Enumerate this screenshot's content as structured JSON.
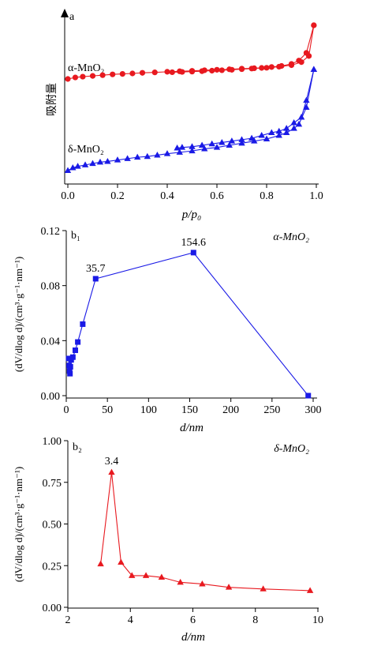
{
  "chart_data": [
    {
      "panel_label": "a",
      "type": "line",
      "xlabel": "p/p₀",
      "ylabel": "吸附量",
      "xlim": [
        0,
        1.0
      ],
      "xticks": [
        "0.0",
        "0.2",
        "0.4",
        "0.6",
        "0.8",
        "1.0"
      ],
      "series": [
        {
          "name": "α-MnO₂",
          "color": "#e8191f",
          "marker": "circle",
          "adsorption": [
            [
              0.0,
              0.55
            ],
            [
              0.03,
              0.56
            ],
            [
              0.06,
              0.565
            ],
            [
              0.1,
              0.57
            ],
            [
              0.14,
              0.575
            ],
            [
              0.18,
              0.58
            ],
            [
              0.22,
              0.583
            ],
            [
              0.26,
              0.586
            ],
            [
              0.3,
              0.59
            ],
            [
              0.35,
              0.593
            ],
            [
              0.4,
              0.597
            ],
            [
              0.45,
              0.6
            ],
            [
              0.5,
              0.603
            ],
            [
              0.55,
              0.607
            ],
            [
              0.6,
              0.61
            ],
            [
              0.65,
              0.613
            ],
            [
              0.7,
              0.617
            ],
            [
              0.75,
              0.62
            ],
            [
              0.8,
              0.623
            ],
            [
              0.85,
              0.63
            ],
            [
              0.9,
              0.64
            ],
            [
              0.94,
              0.66
            ],
            [
              0.97,
              0.7
            ],
            [
              0.99,
              0.9
            ]
          ],
          "desorption": [
            [
              0.99,
              0.9
            ],
            [
              0.96,
              0.72
            ],
            [
              0.93,
              0.67
            ],
            [
              0.9,
              0.648
            ],
            [
              0.86,
              0.635
            ],
            [
              0.82,
              0.628
            ],
            [
              0.78,
              0.622
            ],
            [
              0.74,
              0.618
            ],
            [
              0.7,
              0.614
            ],
            [
              0.66,
              0.61
            ],
            [
              0.62,
              0.607
            ],
            [
              0.58,
              0.604
            ],
            [
              0.54,
              0.601
            ],
            [
              0.5,
              0.598
            ],
            [
              0.46,
              0.596
            ],
            [
              0.42,
              0.594
            ]
          ]
        },
        {
          "name": "δ-MnO₂",
          "color": "#1a1ae6",
          "marker": "triangle",
          "adsorption": [
            [
              0.0,
              0.0
            ],
            [
              0.02,
              0.02
            ],
            [
              0.04,
              0.03
            ],
            [
              0.07,
              0.04
            ],
            [
              0.1,
              0.05
            ],
            [
              0.13,
              0.06
            ],
            [
              0.16,
              0.065
            ],
            [
              0.2,
              0.075
            ],
            [
              0.24,
              0.085
            ],
            [
              0.28,
              0.095
            ],
            [
              0.32,
              0.1
            ],
            [
              0.36,
              0.11
            ],
            [
              0.4,
              0.12
            ],
            [
              0.45,
              0.13
            ],
            [
              0.5,
              0.14
            ],
            [
              0.55,
              0.155
            ],
            [
              0.6,
              0.165
            ],
            [
              0.65,
              0.18
            ],
            [
              0.7,
              0.195
            ],
            [
              0.75,
              0.21
            ],
            [
              0.8,
              0.225
            ],
            [
              0.85,
              0.25
            ],
            [
              0.88,
              0.27
            ],
            [
              0.91,
              0.3
            ],
            [
              0.93,
              0.33
            ],
            [
              0.96,
              0.45
            ],
            [
              0.99,
              0.72
            ]
          ],
          "desorption": [
            [
              0.99,
              0.72
            ],
            [
              0.96,
              0.5
            ],
            [
              0.94,
              0.38
            ],
            [
              0.91,
              0.34
            ],
            [
              0.88,
              0.3
            ],
            [
              0.85,
              0.28
            ],
            [
              0.82,
              0.27
            ],
            [
              0.78,
              0.25
            ],
            [
              0.74,
              0.23
            ],
            [
              0.7,
              0.22
            ],
            [
              0.66,
              0.21
            ],
            [
              0.62,
              0.2
            ],
            [
              0.58,
              0.19
            ],
            [
              0.54,
              0.18
            ],
            [
              0.5,
              0.17
            ],
            [
              0.46,
              0.165
            ],
            [
              0.44,
              0.16
            ]
          ]
        }
      ]
    },
    {
      "panel_label": "b₁",
      "type": "line",
      "xlabel": "d/nm",
      "ylabel": "(dV/dlog d)/(cm³·g⁻¹·nm⁻¹)",
      "xlim": [
        0,
        300
      ],
      "ylim": [
        0,
        0.12
      ],
      "xticks": [
        "0",
        "50",
        "100",
        "150",
        "200",
        "250",
        "300"
      ],
      "yticks": [
        "0.00",
        "0.04",
        "0.08",
        "0.12"
      ],
      "legend": "α-MnO₂",
      "series": [
        {
          "name": "α-MnO₂",
          "color": "#1a1ae6",
          "marker": "square",
          "x": [
            3,
            3.5,
            4,
            4.5,
            5,
            6,
            8,
            11,
            14,
            20,
            35.7,
            154.6,
            294
          ],
          "y": [
            0.027,
            0.022,
            0.018,
            0.016,
            0.021,
            0.026,
            0.028,
            0.033,
            0.039,
            0.052,
            0.085,
            0.104,
            0.0
          ],
          "labels": [
            {
              "x": 35.7,
              "y": 0.085,
              "text": "35.7"
            },
            {
              "x": 154.6,
              "y": 0.104,
              "text": "154.6"
            }
          ]
        }
      ]
    },
    {
      "panel_label": "b₂",
      "type": "line",
      "xlabel": "d/nm",
      "ylabel": "(dV/dlog d)/(cm³·g⁻¹·nm⁻¹)",
      "xlim": [
        2,
        10
      ],
      "ylim": [
        0,
        1.0
      ],
      "xticks": [
        "2",
        "4",
        "6",
        "8",
        "10"
      ],
      "yticks": [
        "0.00",
        "0.25",
        "0.50",
        "0.75",
        "1.00"
      ],
      "legend": "δ-MnO₂",
      "series": [
        {
          "name": "δ-MnO₂",
          "color": "#e8191f",
          "marker": "triangle",
          "x": [
            3.05,
            3.4,
            3.7,
            4.05,
            4.5,
            5.0,
            5.6,
            6.3,
            7.15,
            8.25,
            9.75
          ],
          "y": [
            0.26,
            0.81,
            0.27,
            0.19,
            0.19,
            0.18,
            0.15,
            0.14,
            0.12,
            0.11,
            0.1
          ],
          "labels": [
            {
              "x": 3.4,
              "y": 0.81,
              "text": "3.4"
            }
          ]
        }
      ]
    }
  ]
}
